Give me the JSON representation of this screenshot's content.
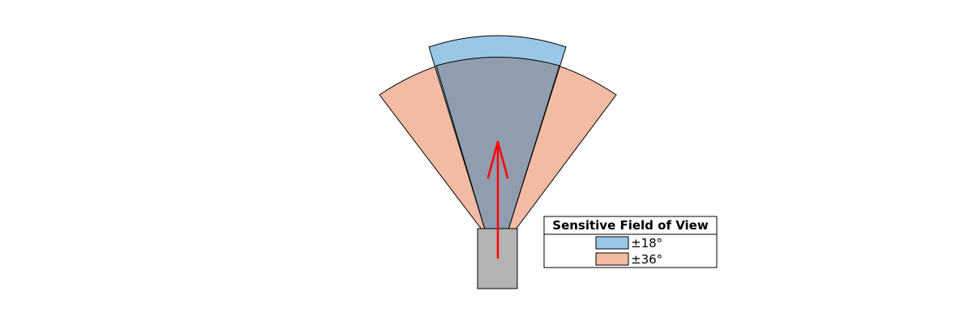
{
  "diagram": {
    "sensor_direction_deg": 90,
    "colors": {
      "fov_narrow": "#9bc7e6",
      "fov_wide": "#f2bba3",
      "overlap": "#8f9dae",
      "sensor_body": "#b3b3b3",
      "direction_arrow": "#ff0000",
      "outline": "#000000"
    },
    "icons": [
      "sensor-body",
      "direction-arrow",
      "fov-wedge-18",
      "fov-wedge-36"
    ]
  },
  "legend": {
    "title": "Sensitive Field of View",
    "items": [
      {
        "label": "±18°",
        "half_angle_deg": 18,
        "color": "#9bc7e6"
      },
      {
        "label": "±36°",
        "half_angle_deg": 36,
        "color": "#f2bba3"
      }
    ]
  }
}
